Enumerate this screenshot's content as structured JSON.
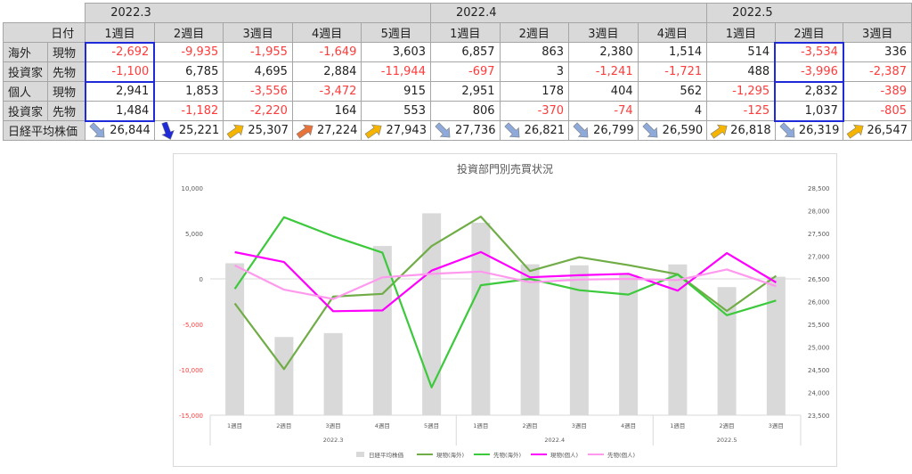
{
  "table": {
    "date_label": "日付",
    "months": [
      {
        "label": "2022.3",
        "span": 5
      },
      {
        "label": "2022.4",
        "span": 4
      },
      {
        "label": "2022.5",
        "span": 3
      }
    ],
    "weeks": [
      "1週目",
      "2週目",
      "3週目",
      "4週目",
      "5週目",
      "1週目",
      "2週目",
      "3週目",
      "4週目",
      "1週目",
      "2週目",
      "3週目"
    ],
    "rows": [
      {
        "group": "海外",
        "sub": "現物",
        "values": [
          -2692,
          -9935,
          -1955,
          -1649,
          3603,
          6857,
          863,
          2380,
          1514,
          514,
          -3534,
          336
        ],
        "display": [
          "-2,692",
          "-9,935",
          "-1,955",
          "-1,649",
          "3,603",
          "6,857",
          "863",
          "2,380",
          "1,514",
          "514",
          "-3,534",
          "336"
        ]
      },
      {
        "group": "投資家",
        "sub": "先物",
        "values": [
          -1100,
          6785,
          4695,
          2884,
          -11944,
          -697,
          3,
          -1241,
          -1721,
          488,
          -3996,
          -2387
        ],
        "display": [
          "-1,100",
          "6,785",
          "4,695",
          "2,884",
          "-11,944",
          "-697",
          "3",
          "-1,241",
          "-1,721",
          "488",
          "-3,996",
          "-2,387"
        ]
      },
      {
        "group": "個人",
        "sub": "現物",
        "values": [
          2941,
          1853,
          -3556,
          -3472,
          915,
          2951,
          178,
          404,
          562,
          -1295,
          2832,
          -389
        ],
        "display": [
          "2,941",
          "1,853",
          "-3,556",
          "-3,472",
          "915",
          "2,951",
          "178",
          "404",
          "562",
          "-1,295",
          "2,832",
          "-389"
        ]
      },
      {
        "group": "投資家",
        "sub": "先物",
        "values": [
          1484,
          -1182,
          -2220,
          164,
          553,
          806,
          -370,
          -74,
          4,
          -125,
          1037,
          -805
        ],
        "display": [
          "1,484",
          "-1,182",
          "-2,220",
          "164",
          "553",
          "806",
          "-370",
          "-74",
          "4",
          "-125",
          "1,037",
          "-805"
        ]
      }
    ],
    "nikkei_label": "日経平均株価",
    "nikkei_display": [
      "26,844",
      "25,221",
      "25,307",
      "27,224",
      "27,943",
      "27,736",
      "26,821",
      "26,799",
      "26,590",
      "26,818",
      "26,319",
      "26,547"
    ],
    "arrows": [
      {
        "dir": "down-right",
        "color": "#8eaadb"
      },
      {
        "dir": "down",
        "color": "#1f2ad8"
      },
      {
        "dir": "up-right",
        "color": "#f5b400"
      },
      {
        "dir": "up-right",
        "color": "#e6733a"
      },
      {
        "dir": "up-right",
        "color": "#f5b400"
      },
      {
        "dir": "down-right",
        "color": "#8eaadb"
      },
      {
        "dir": "down-right",
        "color": "#8eaadb"
      },
      {
        "dir": "down-right",
        "color": "#8eaadb"
      },
      {
        "dir": "down-right",
        "color": "#8eaadb"
      },
      {
        "dir": "up-right",
        "color": "#f5b400"
      },
      {
        "dir": "down-right",
        "color": "#8eaadb"
      },
      {
        "dir": "up-right",
        "color": "#f5b400"
      }
    ],
    "highlight_color": "#1f2ad8"
  },
  "chart_data": {
    "type": "bar",
    "title": "投資部門別売買状況",
    "categories": [
      "1週目",
      "2週目",
      "3週目",
      "4週目",
      "5週目",
      "1週目",
      "2週目",
      "3週目",
      "4週目",
      "1週目",
      "2週目",
      "3週目"
    ],
    "group_labels": [
      {
        "label": "2022.3",
        "from": 0,
        "to": 4
      },
      {
        "label": "2022.4",
        "from": 5,
        "to": 8
      },
      {
        "label": "2022.5",
        "from": 9,
        "to": 11
      }
    ],
    "y_left": {
      "min": -15000,
      "max": 10000,
      "step": 5000,
      "ticks": [
        "-15,000",
        "-10,000",
        "-5,000",
        "0",
        "5,000",
        "10,000"
      ]
    },
    "y_right": {
      "min": 23500,
      "max": 28500,
      "step": 500,
      "ticks": [
        "23,500",
        "24,000",
        "24,500",
        "25,000",
        "25,500",
        "26,000",
        "26,500",
        "27,000",
        "27,500",
        "28,000",
        "28,500"
      ]
    },
    "bars": {
      "name": "日経平均株価",
      "axis": "right",
      "color": "#d9d9d9",
      "values": [
        26844,
        25221,
        25307,
        27224,
        27943,
        27736,
        26821,
        26799,
        26590,
        26818,
        26319,
        26547
      ]
    },
    "series": [
      {
        "name": "現物(海外)",
        "color": "#70ad47",
        "values": [
          -2692,
          -9935,
          -1955,
          -1649,
          3603,
          6857,
          863,
          2380,
          1514,
          514,
          -3534,
          336
        ]
      },
      {
        "name": "先物(海外)",
        "color": "#3cc93c",
        "values": [
          -1100,
          6785,
          4695,
          2884,
          -11944,
          -697,
          3,
          -1241,
          -1721,
          488,
          -3996,
          -2387
        ]
      },
      {
        "name": "現物(個人)",
        "color": "#ff00ff",
        "values": [
          2941,
          1853,
          -3556,
          -3472,
          915,
          2951,
          178,
          404,
          562,
          -1295,
          2832,
          -389
        ]
      },
      {
        "name": "先物(個人)",
        "color": "#ff99ee",
        "values": [
          1484,
          -1182,
          -2220,
          164,
          553,
          806,
          -370,
          -74,
          4,
          -125,
          1037,
          -805
        ]
      }
    ],
    "legend_position": "bottom",
    "grid": false
  }
}
